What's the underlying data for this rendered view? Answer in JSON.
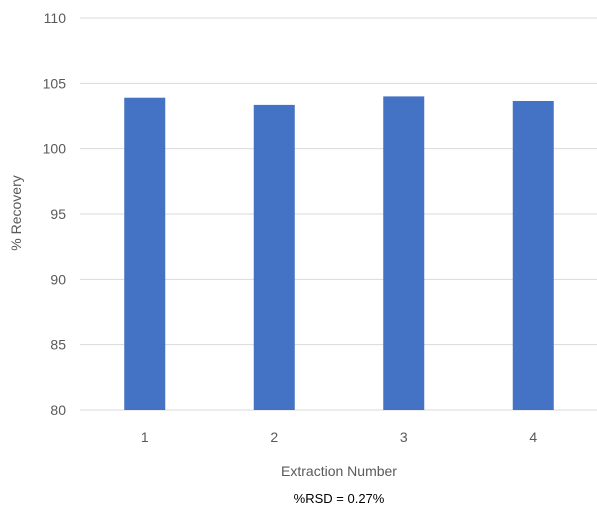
{
  "chart_data": {
    "type": "bar",
    "categories": [
      "1",
      "2",
      "3",
      "4"
    ],
    "values": [
      103.9,
      103.35,
      104.0,
      103.65
    ],
    "xlabel": "Extraction Number",
    "ylabel": "% Recovery",
    "ylim": [
      80,
      110
    ],
    "yticks": [
      80,
      85,
      90,
      95,
      100,
      105,
      110
    ],
    "grid": true,
    "legend": "none",
    "annotation": "%RSD = 0.27%",
    "bar_color": "#4472c4"
  }
}
